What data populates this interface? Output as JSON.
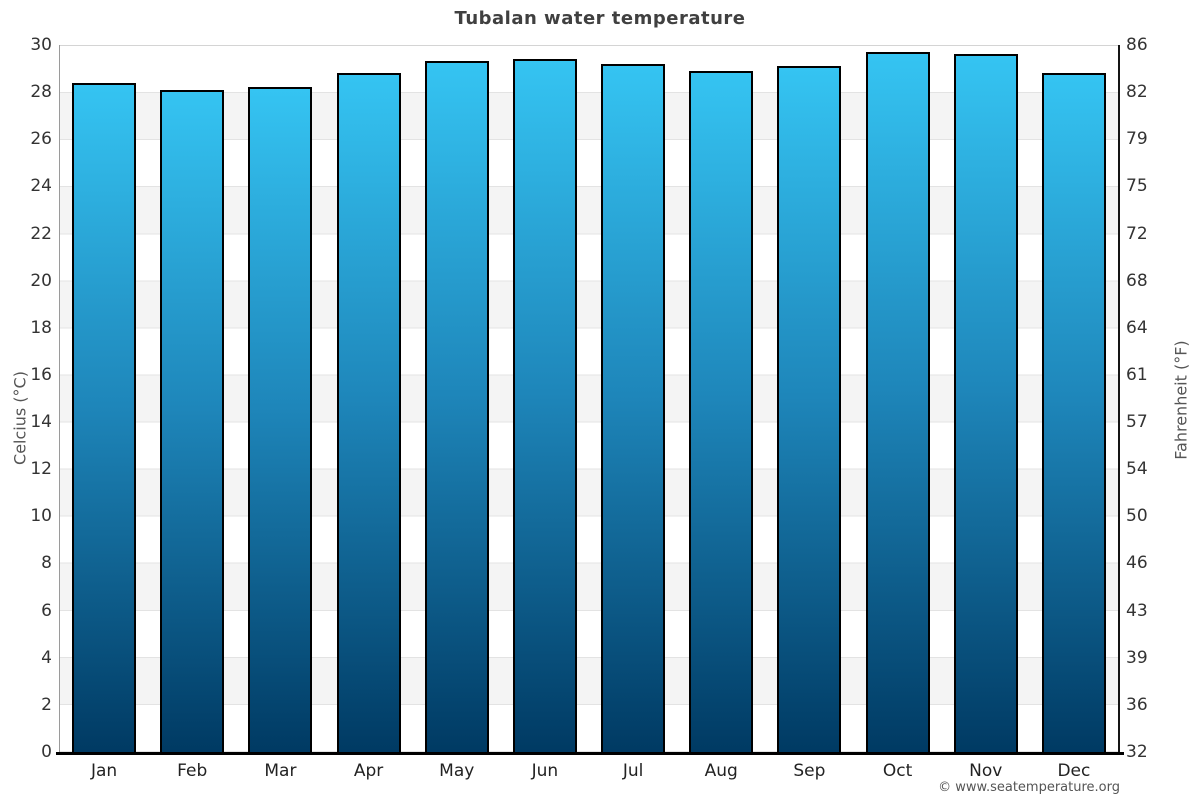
{
  "chart_data": {
    "type": "bar",
    "title": "Tubalan water temperature",
    "categories": [
      "Jan",
      "Feb",
      "Mar",
      "Apr",
      "May",
      "Jun",
      "Jul",
      "Aug",
      "Sep",
      "Oct",
      "Nov",
      "Dec"
    ],
    "values": [
      28.4,
      28.1,
      28.2,
      28.8,
      29.3,
      29.4,
      29.2,
      28.9,
      29.1,
      29.7,
      29.6,
      28.8
    ],
    "unit": "°C",
    "ylabel_left": "Celcius (°C)",
    "ylabel_right": "Fahrenheit (°F)",
    "ylim": [
      0,
      30
    ],
    "y_ticks_left": [
      30,
      28,
      26,
      24,
      22,
      20,
      18,
      16,
      14,
      12,
      10,
      8,
      6,
      4,
      2,
      0
    ],
    "y_ticks_right": [
      86,
      82,
      79,
      75,
      72,
      68,
      64,
      61,
      57,
      54,
      50,
      46,
      43,
      39,
      36,
      32
    ],
    "legend": "none",
    "grid": "alternating horizontal bands every 2°C",
    "colors": {
      "bar_gradient_top": "#35c4f2",
      "bar_gradient_mid": "#1e86ba",
      "bar_gradient_bottom": "#003a63",
      "bar_border": "#000000",
      "band_gray": "#f4f4f4",
      "band_white": "#ffffff",
      "title": "#404040",
      "tick_labels": "#333333",
      "axis_titles": "#555555"
    },
    "footer": "© www.seatemperature.org"
  }
}
